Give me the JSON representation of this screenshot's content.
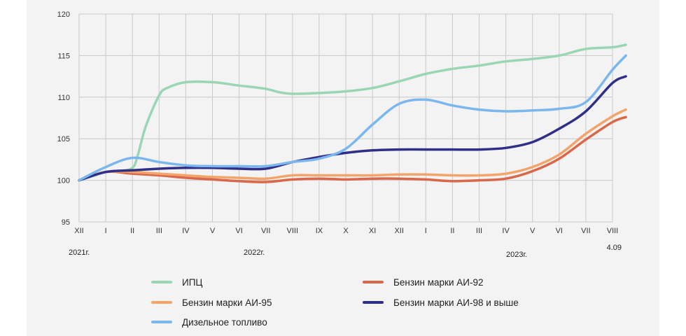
{
  "chart_data": {
    "type": "line",
    "title": "",
    "xlabel": "",
    "ylabel": "",
    "ylim": [
      95,
      120
    ],
    "yticks": [
      "95",
      "100",
      "105",
      "110",
      "115",
      "120"
    ],
    "grid": true,
    "categories": [
      "XII",
      "I",
      "II",
      "III",
      "IV",
      "V",
      "VI",
      "VII",
      "VIII",
      "IX",
      "X",
      "XI",
      "XII",
      "I",
      "II",
      "III",
      "IV",
      "V",
      "VI",
      "VII",
      "VIII"
    ],
    "year_labels": [
      "2021г.",
      "2022г.",
      "2023г."
    ],
    "end_label": "4.09",
    "series": [
      {
        "name": "ИПЦ",
        "color": "#9bd6b4",
        "points": [
          [
            0,
            100
          ],
          [
            0.5,
            100.5
          ],
          [
            1,
            101
          ],
          [
            1.5,
            101.1
          ],
          [
            2,
            101.5
          ],
          [
            2.2,
            103
          ],
          [
            2.5,
            106.5
          ],
          [
            3,
            110.2
          ],
          [
            3.3,
            111.1
          ],
          [
            4,
            111.8
          ],
          [
            5,
            111.8
          ],
          [
            6,
            111.4
          ],
          [
            7,
            111
          ],
          [
            7.5,
            110.6
          ],
          [
            8,
            110.4
          ],
          [
            9,
            110.5
          ],
          [
            10,
            110.7
          ],
          [
            11,
            111.1
          ],
          [
            12,
            111.9
          ],
          [
            13,
            112.8
          ],
          [
            14,
            113.4
          ],
          [
            15,
            113.8
          ],
          [
            16,
            114.3
          ],
          [
            17,
            114.6
          ],
          [
            18,
            115
          ],
          [
            19,
            115.8
          ],
          [
            20,
            116
          ],
          [
            20.5,
            116.3
          ]
        ]
      },
      {
        "name": "Бензин марки АИ-92",
        "color": "#d9674a",
        "points": [
          [
            0,
            100
          ],
          [
            1,
            101
          ],
          [
            2,
            100.8
          ],
          [
            3,
            100.6
          ],
          [
            4,
            100.3
          ],
          [
            5,
            100.1
          ],
          [
            6,
            99.9
          ],
          [
            7,
            99.8
          ],
          [
            8,
            100.1
          ],
          [
            9,
            100.2
          ],
          [
            10,
            100.1
          ],
          [
            11,
            100.2
          ],
          [
            12,
            100.2
          ],
          [
            13,
            100.1
          ],
          [
            14,
            99.9
          ],
          [
            15,
            100
          ],
          [
            16,
            100.2
          ],
          [
            17,
            101.1
          ],
          [
            18,
            102.6
          ],
          [
            19,
            104.9
          ],
          [
            20,
            107
          ],
          [
            20.5,
            107.6
          ]
        ]
      },
      {
        "name": "Бензин марки АИ-95",
        "color": "#f2a46a",
        "points": [
          [
            0,
            100
          ],
          [
            1,
            101
          ],
          [
            2,
            101
          ],
          [
            3,
            100.8
          ],
          [
            4,
            100.6
          ],
          [
            5,
            100.4
          ],
          [
            6,
            100.3
          ],
          [
            7,
            100.2
          ],
          [
            8,
            100.6
          ],
          [
            9,
            100.6
          ],
          [
            10,
            100.6
          ],
          [
            11,
            100.6
          ],
          [
            12,
            100.7
          ],
          [
            13,
            100.7
          ],
          [
            14,
            100.6
          ],
          [
            15,
            100.6
          ],
          [
            16,
            100.8
          ],
          [
            17,
            101.6
          ],
          [
            18,
            103.1
          ],
          [
            19,
            105.6
          ],
          [
            20,
            107.7
          ],
          [
            20.5,
            108.5
          ]
        ]
      },
      {
        "name": "Бензин марки АИ-98 и выше",
        "color": "#2f2f87",
        "points": [
          [
            0,
            100
          ],
          [
            1,
            101
          ],
          [
            2,
            101.2
          ],
          [
            3,
            101.4
          ],
          [
            4,
            101.5
          ],
          [
            5,
            101.5
          ],
          [
            6,
            101.4
          ],
          [
            7,
            101.4
          ],
          [
            8,
            102.2
          ],
          [
            9,
            102.8
          ],
          [
            10,
            103.3
          ],
          [
            11,
            103.6
          ],
          [
            12,
            103.7
          ],
          [
            13,
            103.7
          ],
          [
            14,
            103.7
          ],
          [
            15,
            103.7
          ],
          [
            16,
            103.9
          ],
          [
            17,
            104.6
          ],
          [
            18,
            106.2
          ],
          [
            19,
            108.3
          ],
          [
            20,
            111.7
          ],
          [
            20.5,
            112.5
          ]
        ]
      },
      {
        "name": "Дизельное топливо",
        "color": "#7bb6ed",
        "points": [
          [
            0,
            100
          ],
          [
            1,
            101.6
          ],
          [
            2,
            102.7
          ],
          [
            3,
            102.2
          ],
          [
            4,
            101.8
          ],
          [
            5,
            101.7
          ],
          [
            6,
            101.7
          ],
          [
            7,
            101.7
          ],
          [
            8,
            102.2
          ],
          [
            9,
            102.6
          ],
          [
            10,
            103.8
          ],
          [
            11,
            106.7
          ],
          [
            12,
            109.2
          ],
          [
            13,
            109.7
          ],
          [
            14,
            109
          ],
          [
            15,
            108.5
          ],
          [
            16,
            108.3
          ],
          [
            17,
            108.4
          ],
          [
            18,
            108.6
          ],
          [
            19,
            109.4
          ],
          [
            20,
            113.3
          ],
          [
            20.5,
            115
          ]
        ]
      }
    ]
  },
  "legend": [
    {
      "label": "ИПЦ",
      "color": "#9bd6b4"
    },
    {
      "label": "Бензин марки АИ-92",
      "color": "#d9674a"
    },
    {
      "label": "Бензин марки АИ-95",
      "color": "#f2a46a"
    },
    {
      "label": "Бензин марки АИ-98 и выше",
      "color": "#2f2f87"
    },
    {
      "label": "Дизельное топливо",
      "color": "#7bb6ed"
    }
  ]
}
